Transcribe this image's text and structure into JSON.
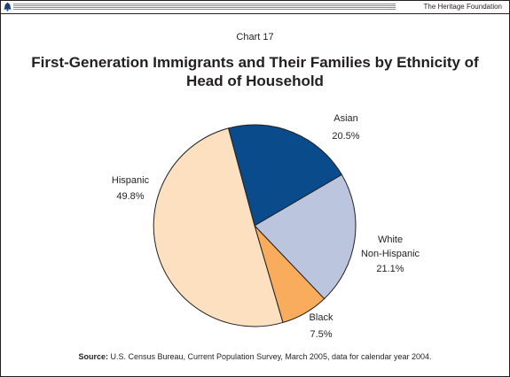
{
  "header": {
    "publisher": "The Heritage Foundation"
  },
  "chart_number": "Chart 17",
  "title_line1": "First-Generation Immigrants and Their Families by Ethnicity of",
  "title_line2": "Head of Household",
  "source_label": "Source:",
  "source_text": "U.S. Census Bureau, Current Population Survey, March 2005, data for calendar year 2004.",
  "colors": {
    "asian": "#0a4b8c",
    "white_non_hispanic": "#bcc5de",
    "black": "#f9ad5c",
    "hispanic": "#fde0c0",
    "outline": "#231f20"
  },
  "chart_data": {
    "type": "pie",
    "title": "First-Generation Immigrants and Their Families by Ethnicity of Head of Household",
    "slices": [
      {
        "label": "Asian",
        "value": 20.5,
        "display": "20.5%",
        "color": "#0a4b8c"
      },
      {
        "label": "White Non-Hispanic",
        "label_lines": [
          "White",
          "Non-Hispanic"
        ],
        "value": 21.1,
        "display": "21.1%",
        "color": "#bcc5de"
      },
      {
        "label": "Black",
        "value": 7.5,
        "display": "7.5%",
        "color": "#f9ad5c"
      },
      {
        "label": "Hispanic",
        "value": 49.8,
        "display": "49.8%",
        "color": "#fde0c0"
      }
    ]
  }
}
